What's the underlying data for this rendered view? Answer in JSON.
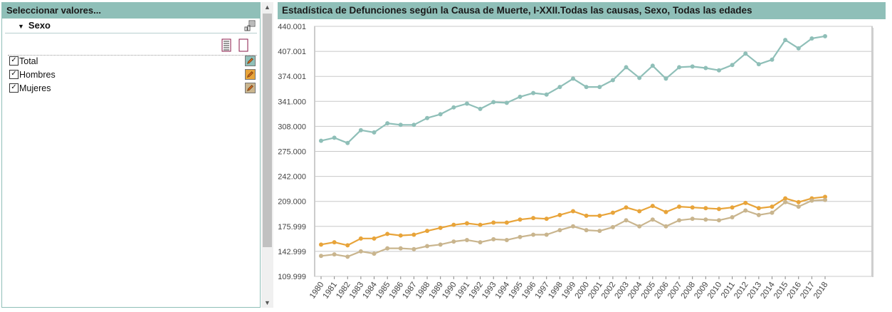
{
  "left_panel": {
    "header": "Seleccionar valores...",
    "dimension": "Sexo",
    "items": [
      {
        "label": "Total",
        "checked": true,
        "color": "#8fbfb8"
      },
      {
        "label": "Hombres",
        "checked": true,
        "color": "#e8a43a"
      },
      {
        "label": "Mujeres",
        "checked": true,
        "color": "#c9b58e"
      }
    ]
  },
  "colors": {
    "total": "#8fbfb8",
    "hombres": "#e8a43a",
    "mujeres": "#c9b58e",
    "header": "#8fbfb8"
  },
  "chart_data": {
    "type": "line",
    "title": "Estadística de Defunciones según la Causa de Muerte, I-XXII.Todas las causas, Sexo, Todas las edades",
    "x": [
      "1980",
      "1981",
      "1982",
      "1983",
      "1984",
      "1985",
      "1986",
      "1987",
      "1988",
      "1989",
      "1990",
      "1991",
      "1992",
      "1993",
      "1994",
      "1995",
      "1996",
      "1997",
      "1998",
      "1999",
      "2000",
      "2001",
      "2002",
      "2003",
      "2004",
      "2005",
      "2006",
      "2007",
      "2008",
      "2009",
      "2010",
      "2011",
      "2012",
      "2013",
      "2014",
      "2015",
      "2016",
      "2017",
      "2018"
    ],
    "yticks": [
      "109.999",
      "142.999",
      "175.999",
      "209.000",
      "242.000",
      "275.000",
      "308.000",
      "341.000",
      "374.001",
      "407.001",
      "440.001"
    ],
    "ylim": [
      109999,
      440001
    ],
    "grid": true,
    "series": [
      {
        "name": "Total",
        "color": "#8fbfb8",
        "values": [
          289000,
          293000,
          286000,
          303000,
          300000,
          312000,
          310000,
          310000,
          319000,
          324000,
          333000,
          338000,
          331000,
          340000,
          339000,
          347000,
          352000,
          350000,
          360000,
          371000,
          360000,
          360000,
          369000,
          386000,
          372000,
          388000,
          371000,
          386000,
          387000,
          385000,
          382000,
          389000,
          404000,
          390000,
          396000,
          422000,
          411000,
          424000,
          427000
        ]
      },
      {
        "name": "Hombres",
        "color": "#e8a43a",
        "values": [
          152000,
          155000,
          151000,
          160000,
          160000,
          166000,
          164000,
          165000,
          170000,
          174000,
          178000,
          180000,
          178000,
          181000,
          181000,
          185000,
          187000,
          186000,
          191000,
          196000,
          190000,
          190000,
          194000,
          201000,
          196000,
          203000,
          195000,
          202000,
          201000,
          200000,
          199000,
          201000,
          207000,
          200000,
          202000,
          213000,
          208000,
          213000,
          215000
        ]
      },
      {
        "name": "Mujeres",
        "color": "#c9b58e",
        "values": [
          137000,
          139000,
          136000,
          143000,
          140000,
          147000,
          147000,
          146000,
          150000,
          152000,
          156000,
          158000,
          155000,
          159000,
          158000,
          162000,
          165000,
          165000,
          171000,
          176000,
          171000,
          170000,
          175000,
          184000,
          176000,
          185000,
          176000,
          184000,
          186000,
          185000,
          184000,
          188000,
          197000,
          191000,
          194000,
          208000,
          202000,
          210000,
          211000
        ]
      }
    ]
  }
}
